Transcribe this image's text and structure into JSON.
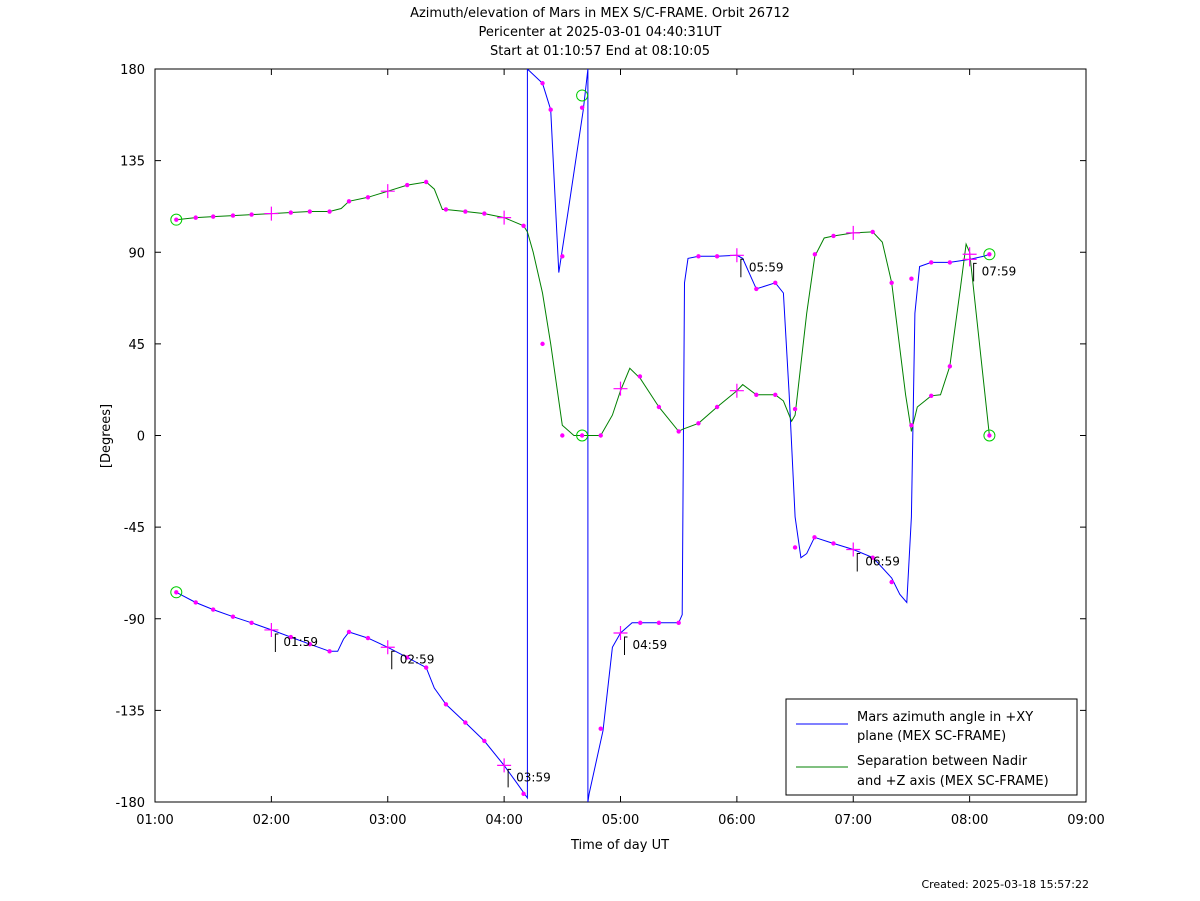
{
  "chart_data": {
    "type": "line",
    "title_lines": [
      "Azimuth/elevation of Mars in MEX S/C-FRAME.  Orbit 26712",
      "Pericenter at 2025-03-01 04:40:31UT",
      "Start at 01:10:57 End at 08:10:05"
    ],
    "xlabel": "Time of day UT",
    "ylabel": "[Degrees]",
    "xlim": [
      1.0,
      9.0
    ],
    "ylim": [
      -180,
      180
    ],
    "x_ticks": [
      1,
      2,
      3,
      4,
      5,
      6,
      7,
      8,
      9
    ],
    "x_tick_labels": [
      "01:00",
      "02:00",
      "03:00",
      "04:00",
      "05:00",
      "06:00",
      "07:00",
      "08:00",
      "09:00"
    ],
    "y_ticks": [
      180,
      135,
      90,
      45,
      0,
      -45,
      -90,
      -135,
      -180
    ],
    "y_tick_labels": [
      "180",
      "135",
      "90",
      "45",
      "0",
      "-45",
      "-90",
      "-135",
      "-180"
    ],
    "legend_position": "bottom-right",
    "series": [
      {
        "name": "Mars azimuth angle in +XY plane (MEX SC-FRAME)",
        "legend_lines": [
          "Mars azimuth angle in +XY",
          "plane (MEX SC-FRAME)"
        ],
        "color": "#0000ff",
        "points": [
          [
            1.183,
            -77
          ],
          [
            1.35,
            -82
          ],
          [
            1.5,
            -85.5
          ],
          [
            1.67,
            -89
          ],
          [
            1.83,
            -92
          ],
          [
            2.0,
            -95.5
          ],
          [
            2.167,
            -99
          ],
          [
            2.33,
            -102.5
          ],
          [
            2.5,
            -106
          ],
          [
            2.57,
            -106
          ],
          [
            2.62,
            -100
          ],
          [
            2.667,
            -96.5
          ],
          [
            2.83,
            -99.5
          ],
          [
            3.0,
            -104
          ],
          [
            3.167,
            -109
          ],
          [
            3.33,
            -114
          ],
          [
            3.4,
            -124
          ],
          [
            3.5,
            -132
          ],
          [
            3.667,
            -141
          ],
          [
            3.83,
            -150
          ],
          [
            4.0,
            -162
          ],
          [
            4.1,
            -170
          ],
          [
            4.2,
            -178
          ],
          [
            4.2,
            180
          ],
          [
            4.33,
            173
          ],
          [
            4.4,
            160
          ],
          [
            4.47,
            80
          ],
          [
            4.55,
            110
          ],
          [
            4.68,
            160
          ],
          [
            4.72,
            180
          ],
          [
            4.72,
            -180
          ],
          [
            4.73,
            -176
          ],
          [
            4.85,
            -145
          ],
          [
            4.93,
            -104
          ],
          [
            5.0,
            -97
          ],
          [
            5.1,
            -92
          ],
          [
            5.5,
            -92
          ],
          [
            5.53,
            -88
          ],
          [
            5.55,
            75
          ],
          [
            5.58,
            87
          ],
          [
            5.67,
            88
          ],
          [
            5.83,
            88
          ],
          [
            6.0,
            88.5
          ],
          [
            6.05,
            87
          ],
          [
            6.167,
            72
          ],
          [
            6.33,
            75
          ],
          [
            6.4,
            70
          ],
          [
            6.45,
            20
          ],
          [
            6.5,
            -40
          ],
          [
            6.55,
            -60
          ],
          [
            6.6,
            -58
          ],
          [
            6.667,
            -50
          ],
          [
            6.8,
            -52.5
          ],
          [
            7.0,
            -56
          ],
          [
            7.17,
            -60
          ],
          [
            7.33,
            -70
          ],
          [
            7.4,
            -78
          ],
          [
            7.46,
            -82
          ],
          [
            7.5,
            -40
          ],
          [
            7.53,
            60
          ],
          [
            7.57,
            83
          ],
          [
            7.67,
            85
          ],
          [
            7.83,
            85
          ],
          [
            8.0,
            86.5
          ],
          [
            8.12,
            88
          ],
          [
            8.17,
            89
          ]
        ]
      },
      {
        "name": "Separation between Nadir and +Z axis (MEX SC-FRAME)",
        "legend_lines": [
          "Separation between Nadir",
          "and +Z axis (MEX SC-FRAME)"
        ],
        "color": "#008000",
        "points": [
          [
            1.183,
            106
          ],
          [
            1.35,
            107
          ],
          [
            1.5,
            107.5
          ],
          [
            1.67,
            108
          ],
          [
            1.83,
            108.5
          ],
          [
            2.0,
            109
          ],
          [
            2.167,
            109.5
          ],
          [
            2.33,
            110
          ],
          [
            2.5,
            110
          ],
          [
            2.6,
            111.5
          ],
          [
            2.667,
            115
          ],
          [
            2.83,
            117
          ],
          [
            3.0,
            120
          ],
          [
            3.167,
            123
          ],
          [
            3.33,
            124.5
          ],
          [
            3.4,
            121
          ],
          [
            3.47,
            111
          ],
          [
            3.5,
            111
          ],
          [
            3.667,
            110
          ],
          [
            3.83,
            109
          ],
          [
            4.0,
            107
          ],
          [
            4.167,
            103
          ],
          [
            4.2,
            100
          ],
          [
            4.25,
            90
          ],
          [
            4.33,
            70
          ],
          [
            4.4,
            45
          ],
          [
            4.5,
            5
          ],
          [
            4.6,
            0
          ],
          [
            4.7,
            0
          ],
          [
            4.83,
            0
          ],
          [
            4.93,
            10
          ],
          [
            5.0,
            22
          ],
          [
            5.08,
            33
          ],
          [
            5.17,
            28
          ],
          [
            5.33,
            14
          ],
          [
            5.5,
            2
          ],
          [
            5.53,
            3
          ],
          [
            5.67,
            6
          ],
          [
            5.83,
            14
          ],
          [
            6.0,
            22
          ],
          [
            6.05,
            25
          ],
          [
            6.167,
            20
          ],
          [
            6.33,
            20
          ],
          [
            6.4,
            17
          ],
          [
            6.47,
            7
          ],
          [
            6.5,
            10
          ],
          [
            6.6,
            60
          ],
          [
            6.67,
            88
          ],
          [
            6.75,
            97
          ],
          [
            6.83,
            98
          ],
          [
            7.0,
            99.5
          ],
          [
            7.167,
            100
          ],
          [
            7.25,
            95
          ],
          [
            7.33,
            75
          ],
          [
            7.45,
            20
          ],
          [
            7.5,
            2
          ],
          [
            7.55,
            14
          ],
          [
            7.67,
            19.5
          ],
          [
            7.75,
            20
          ],
          [
            7.83,
            34
          ],
          [
            7.92,
            72
          ],
          [
            7.97,
            94
          ],
          [
            8.0,
            90
          ],
          [
            8.17,
            0
          ]
        ]
      }
    ],
    "azimuth_markers_small": [
      [
        1.183,
        -77
      ],
      [
        1.35,
        -82
      ],
      [
        1.5,
        -85.5
      ],
      [
        1.67,
        -89
      ],
      [
        1.83,
        -92
      ],
      [
        2.167,
        -99
      ],
      [
        2.33,
        -102.5
      ],
      [
        2.5,
        -106
      ],
      [
        2.667,
        -96.5
      ],
      [
        2.83,
        -99.5
      ],
      [
        3.167,
        -109
      ],
      [
        3.33,
        -114
      ],
      [
        3.5,
        -132
      ],
      [
        3.667,
        -141
      ],
      [
        3.83,
        -150
      ],
      [
        4.167,
        -176
      ],
      [
        4.33,
        173
      ],
      [
        4.4,
        160
      ],
      [
        4.5,
        88
      ],
      [
        4.67,
        161
      ],
      [
        4.83,
        -144
      ],
      [
        5.17,
        -92
      ],
      [
        5.33,
        -92
      ],
      [
        5.5,
        -92
      ],
      [
        5.67,
        88
      ],
      [
        5.83,
        88
      ],
      [
        6.167,
        72
      ],
      [
        6.33,
        75
      ],
      [
        6.5,
        -55
      ],
      [
        6.667,
        -50
      ],
      [
        6.83,
        -53
      ],
      [
        7.167,
        -60
      ],
      [
        7.33,
        -72
      ],
      [
        7.5,
        77
      ],
      [
        7.67,
        85
      ],
      [
        7.83,
        85
      ],
      [
        8.17,
        89
      ]
    ],
    "azimuth_markers_hour": [
      [
        2.0,
        -95.5
      ],
      [
        3.0,
        -104
      ],
      [
        4.0,
        -162
      ],
      [
        5.0,
        -97
      ],
      [
        6.0,
        88.5
      ],
      [
        7.0,
        -56
      ],
      [
        8.0,
        86.5
      ]
    ],
    "separation_markers_small": [
      [
        1.183,
        106
      ],
      [
        1.35,
        107
      ],
      [
        1.5,
        107.5
      ],
      [
        1.67,
        108
      ],
      [
        1.83,
        108.5
      ],
      [
        2.167,
        109.5
      ],
      [
        2.33,
        110
      ],
      [
        2.5,
        110
      ],
      [
        2.667,
        115
      ],
      [
        2.83,
        117
      ],
      [
        3.167,
        123
      ],
      [
        3.33,
        124.5
      ],
      [
        3.5,
        111
      ],
      [
        3.667,
        110
      ],
      [
        3.83,
        109
      ],
      [
        4.167,
        103
      ],
      [
        4.33,
        45
      ],
      [
        4.5,
        0
      ],
      [
        4.67,
        0
      ],
      [
        4.83,
        0
      ],
      [
        5.167,
        29
      ],
      [
        5.33,
        14
      ],
      [
        5.5,
        2
      ],
      [
        5.67,
        6
      ],
      [
        5.83,
        14
      ],
      [
        6.167,
        20
      ],
      [
        6.33,
        20
      ],
      [
        6.5,
        13
      ],
      [
        6.67,
        89
      ],
      [
        6.83,
        98
      ],
      [
        7.167,
        100
      ],
      [
        7.33,
        75
      ],
      [
        7.5,
        5
      ],
      [
        7.67,
        19.5
      ],
      [
        7.83,
        34
      ],
      [
        8.17,
        0
      ]
    ],
    "separation_markers_hour": [
      [
        2.0,
        109
      ],
      [
        3.0,
        120
      ],
      [
        4.0,
        107
      ],
      [
        5.0,
        23
      ],
      [
        6.0,
        22
      ],
      [
        7.0,
        99.5
      ],
      [
        8.0,
        89
      ]
    ],
    "circle_markers": [
      [
        1.183,
        -77
      ],
      [
        1.183,
        106
      ],
      [
        4.67,
        167
      ],
      [
        4.67,
        0
      ],
      [
        8.17,
        89
      ],
      [
        8.17,
        0
      ]
    ],
    "hour_annotations": [
      {
        "x": 2.0,
        "y": -95.5,
        "label": "01:59"
      },
      {
        "x": 3.0,
        "y": -104,
        "label": "02:59"
      },
      {
        "x": 4.0,
        "y": -162,
        "label": "03:59"
      },
      {
        "x": 5.0,
        "y": -97,
        "label": "04:59"
      },
      {
        "x": 6.0,
        "y": 88.5,
        "label": "05:59"
      },
      {
        "x": 7.0,
        "y": -56,
        "label": "06:59"
      },
      {
        "x": 8.0,
        "y": 86.5,
        "label": "07:59"
      }
    ]
  },
  "created_text": "Created: 2025-03-18 15:57:22",
  "colors": {
    "azimuth": "#0000ff",
    "separation": "#008000",
    "marker": "#ff00ff",
    "circle": "#00cc00"
  }
}
